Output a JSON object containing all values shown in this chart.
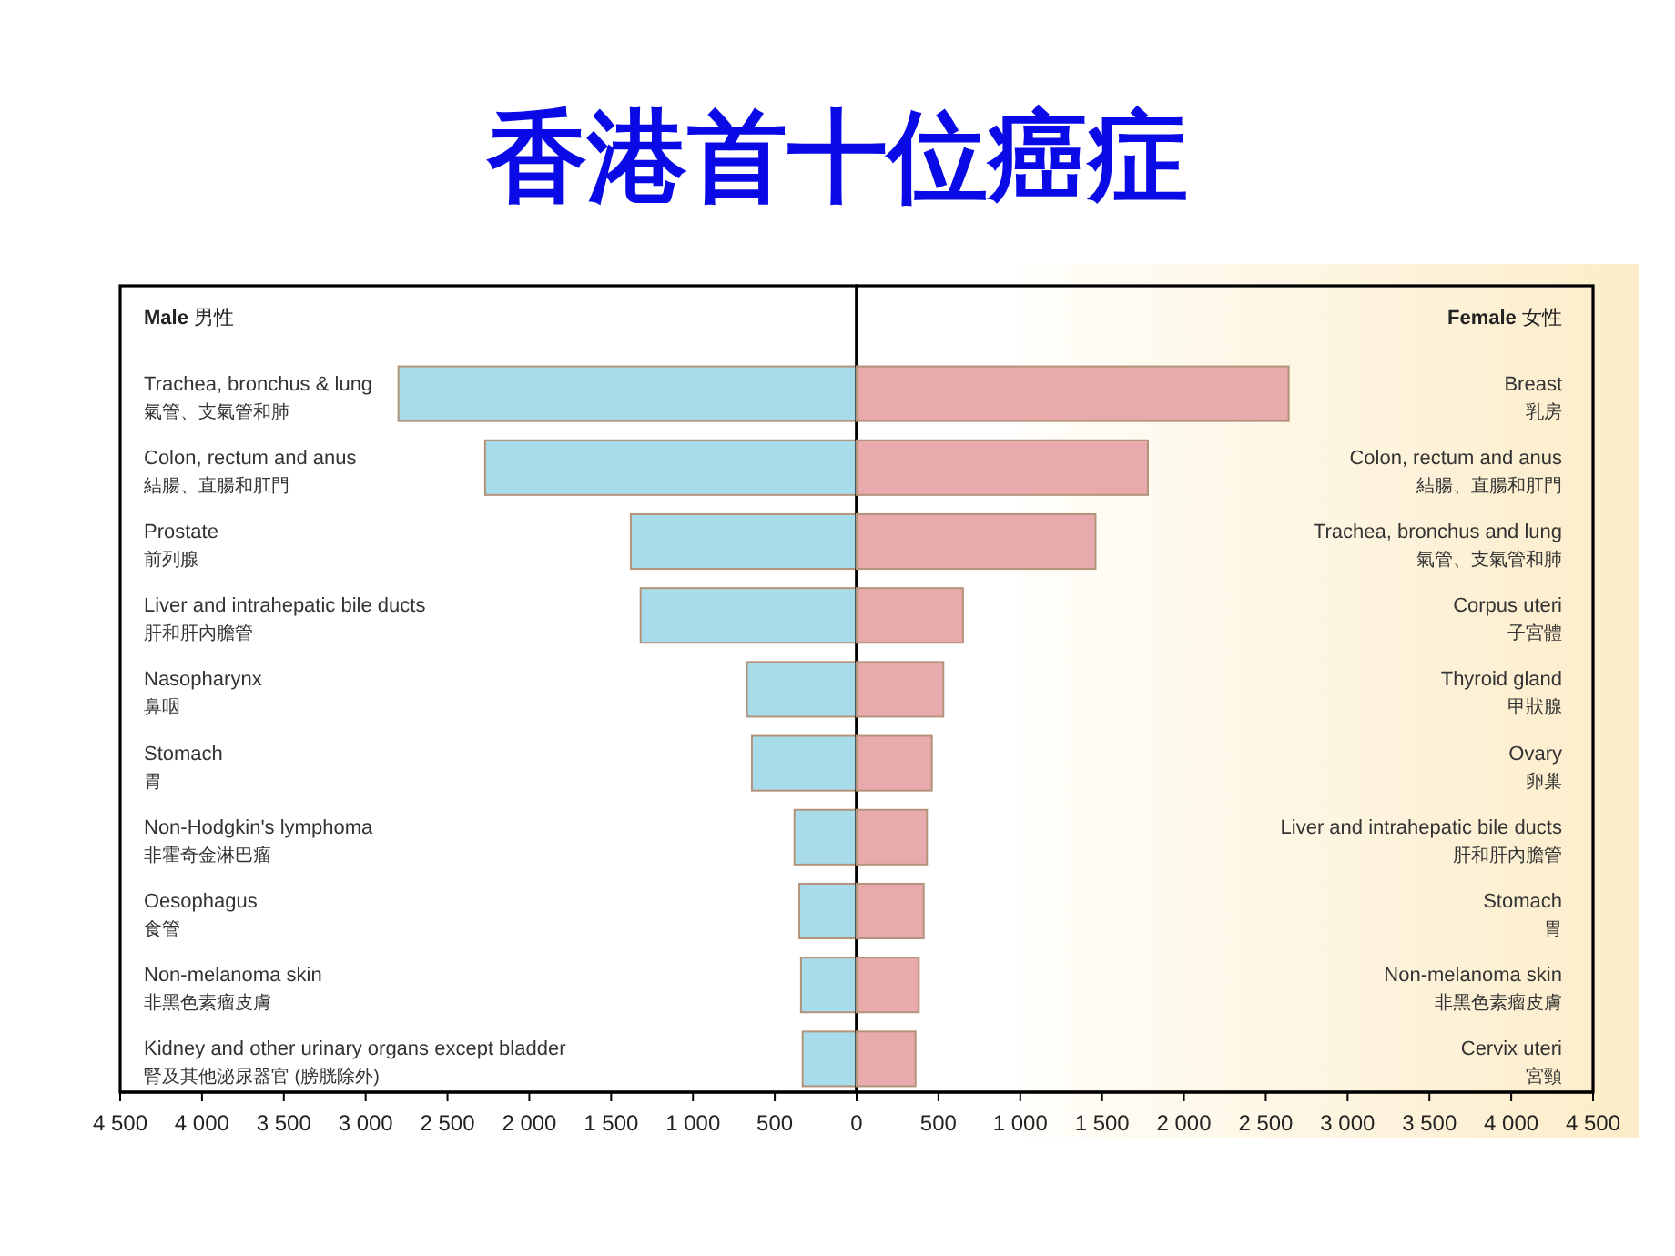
{
  "chart_data": [
    {
      "type": "bar",
      "orientation": "horizontal",
      "title": "香港首十位癌症",
      "subtitle": "Male 男性",
      "categories": [
        "Trachea, bronchus & lung\n氣管、支氣管和肺",
        "Colon, rectum and anus\n結腸、直腸和肛門",
        "Prostate\n前列腺",
        "Liver and intrahepatic bile ducts\n肝和肝內膽管",
        "Nasopharynx\n鼻咽",
        "Stomach\n胃",
        "Non-Hodgkin's lymphoma\n非霍奇金淋巴瘤",
        "Oesophagus\n食管",
        "Non-melanoma skin\n非黑色素瘤皮膚",
        "Kidney and other urinary organs except bladder\n腎及其他泌尿器官 (膀胱除外)"
      ],
      "values": [
        2800,
        2270,
        1380,
        1320,
        670,
        640,
        380,
        350,
        340,
        330
      ],
      "color": "#a9dcea",
      "xlim": [
        4500,
        0
      ],
      "xticks": [
        {
          "value": 4500,
          "label": "4 500"
        },
        {
          "value": 4000,
          "label": "4 000"
        },
        {
          "value": 3500,
          "label": "3 500"
        },
        {
          "value": 3000,
          "label": "3 000"
        },
        {
          "value": 2500,
          "label": "2 500"
        },
        {
          "value": 2000,
          "label": "2 000"
        },
        {
          "value": 1500,
          "label": "1 500"
        },
        {
          "value": 1000,
          "label": "1 000"
        },
        {
          "value": 500,
          "label": "500"
        },
        {
          "value": 0,
          "label": "0"
        }
      ]
    },
    {
      "type": "bar",
      "orientation": "horizontal",
      "subtitle": "Female 女性",
      "categories": [
        "Breast\n乳房",
        "Colon, rectum and anus\n結腸、直腸和肛門",
        "Trachea, bronchus and lung\n氣管、支氣管和肺",
        "Corpus uteri\n子宮體",
        "Thyroid gland\n甲狀腺",
        "Ovary\n卵巢",
        "Liver and intrahepatic bile ducts\n肝和肝內膽管",
        "Stomach\n胃",
        "Non-melanoma skin\n非黑色素瘤皮膚",
        "Cervix uteri\n宮頸"
      ],
      "values": [
        2640,
        1780,
        1460,
        650,
        530,
        460,
        430,
        410,
        380,
        360
      ],
      "color": "#e8aaac",
      "xlim": [
        0,
        4500
      ],
      "xticks": [
        {
          "value": 500,
          "label": "500"
        },
        {
          "value": 1000,
          "label": "1 000"
        },
        {
          "value": 1500,
          "label": "1 500"
        },
        {
          "value": 2000,
          "label": "2 000"
        },
        {
          "value": 2500,
          "label": "2 500"
        },
        {
          "value": 3000,
          "label": "3 000"
        },
        {
          "value": 3500,
          "label": "3 500"
        },
        {
          "value": 4000,
          "label": "4 000"
        },
        {
          "value": 4500,
          "label": "4 500"
        }
      ]
    }
  ]
}
